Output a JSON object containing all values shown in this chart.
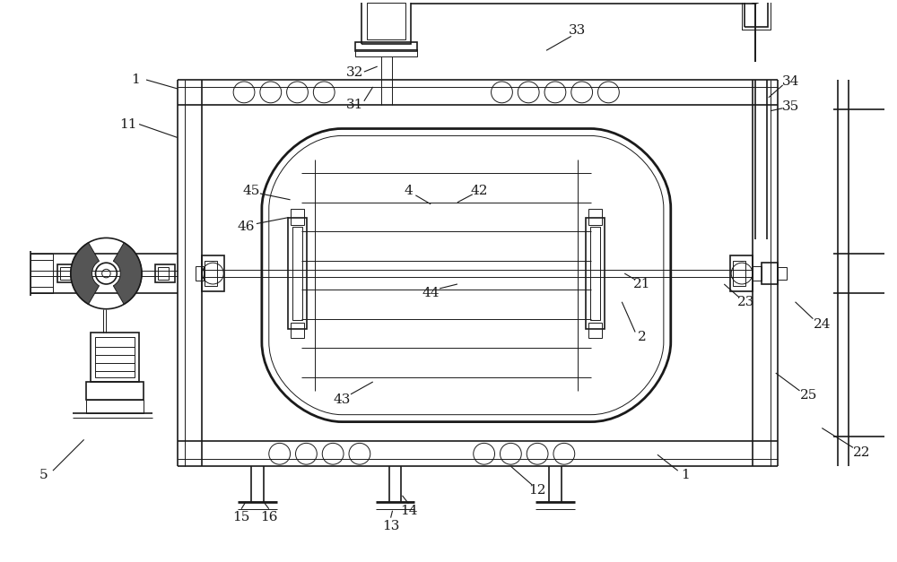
{
  "bg_color": "#ffffff",
  "line_color": "#1a1a1a",
  "lw1": 1.2,
  "lw2": 0.7,
  "lw3": 2.0,
  "figsize": [
    10.0,
    6.27
  ],
  "dpi": 100
}
